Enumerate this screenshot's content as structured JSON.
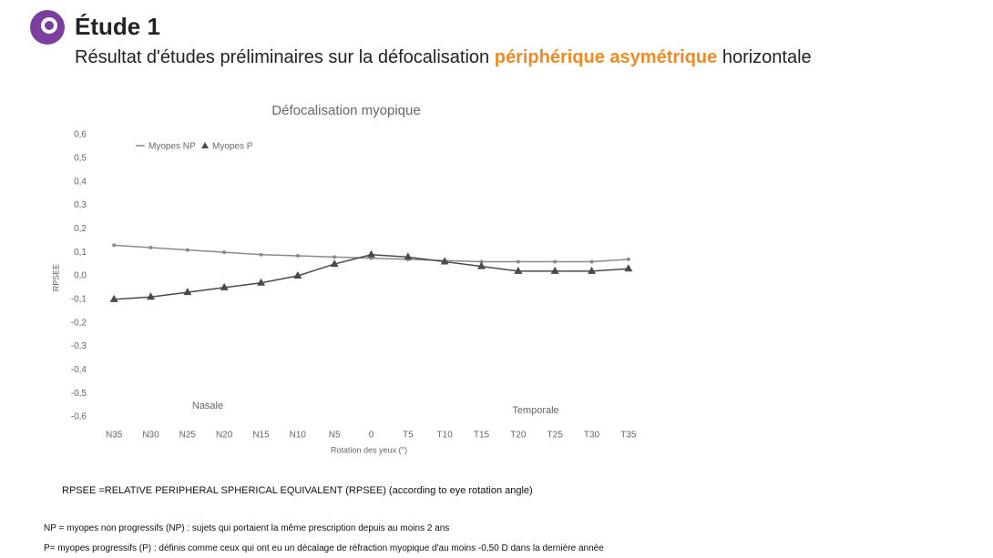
{
  "header": {
    "title": "Étude 1",
    "subtitle_before": "Résultat d'études préliminaires sur la défocalisation ",
    "subtitle_highlight": "périphérique asymétrique",
    "subtitle_after": " horizontale"
  },
  "chart_data": {
    "type": "line",
    "title": "Défocalisation myopique",
    "x_label": "Rotation des yeux (°)",
    "y_label": "RPSEE",
    "categories": [
      "N35",
      "N30",
      "N25",
      "N20",
      "N15",
      "N10",
      "N5",
      "0",
      "T5",
      "T10",
      "T15",
      "T20",
      "T25",
      "T30",
      "T35"
    ],
    "series": [
      {
        "name": "Myopes NP",
        "color": "#8a8a8a",
        "marker": "dot",
        "values": [
          0.13,
          0.12,
          0.11,
          0.1,
          0.09,
          0.085,
          0.08,
          0.075,
          0.07,
          0.065,
          0.06,
          0.06,
          0.06,
          0.06,
          0.07
        ]
      },
      {
        "name": "Myopes P",
        "color": "#4a4a4a",
        "marker": "triangle",
        "values": [
          -0.1,
          -0.09,
          -0.07,
          -0.05,
          -0.03,
          0.0,
          0.05,
          0.09,
          0.08,
          0.06,
          0.04,
          0.02,
          0.02,
          0.02,
          0.03
        ]
      }
    ],
    "ylim": [
      -0.6,
      0.6
    ],
    "yticks": [
      {
        "value": 0.6,
        "label": "0,6"
      },
      {
        "value": 0.5,
        "label": "0,5"
      },
      {
        "value": 0.4,
        "label": "0,4"
      },
      {
        "value": 0.3,
        "label": "0,3"
      },
      {
        "value": 0.2,
        "label": "0,2"
      },
      {
        "value": 0.1,
        "label": "0,1"
      },
      {
        "value": 0,
        "label": "0,0"
      },
      {
        "value": -0.1,
        "label": "-0,1"
      },
      {
        "value": -0.2,
        "label": "-0,2"
      },
      {
        "value": -0.3,
        "label": "-0,3"
      },
      {
        "value": -0.4,
        "label": "-0,4"
      },
      {
        "value": -0.5,
        "label": "-0,5"
      },
      {
        "value": -0.6,
        "label": "-0,6"
      }
    ],
    "annotations": [
      "Nasale",
      "Temporale"
    ],
    "legend": "top-left"
  },
  "footnotes": [
    "RPSEE =RELATIVE PERIPHERAL SPHERICAL EQUIVALENT (RPSEE) (according to eye rotation angle)",
    "NP = myopes non progressifs (NP) : sujets qui portaient la même prescription depuis au moins 2 ans",
    "P= myopes progressifs (P) : définis comme ceux qui ont eu un décalage de réfraction myopique d'au moins -0,50 D dans la dernière année"
  ]
}
